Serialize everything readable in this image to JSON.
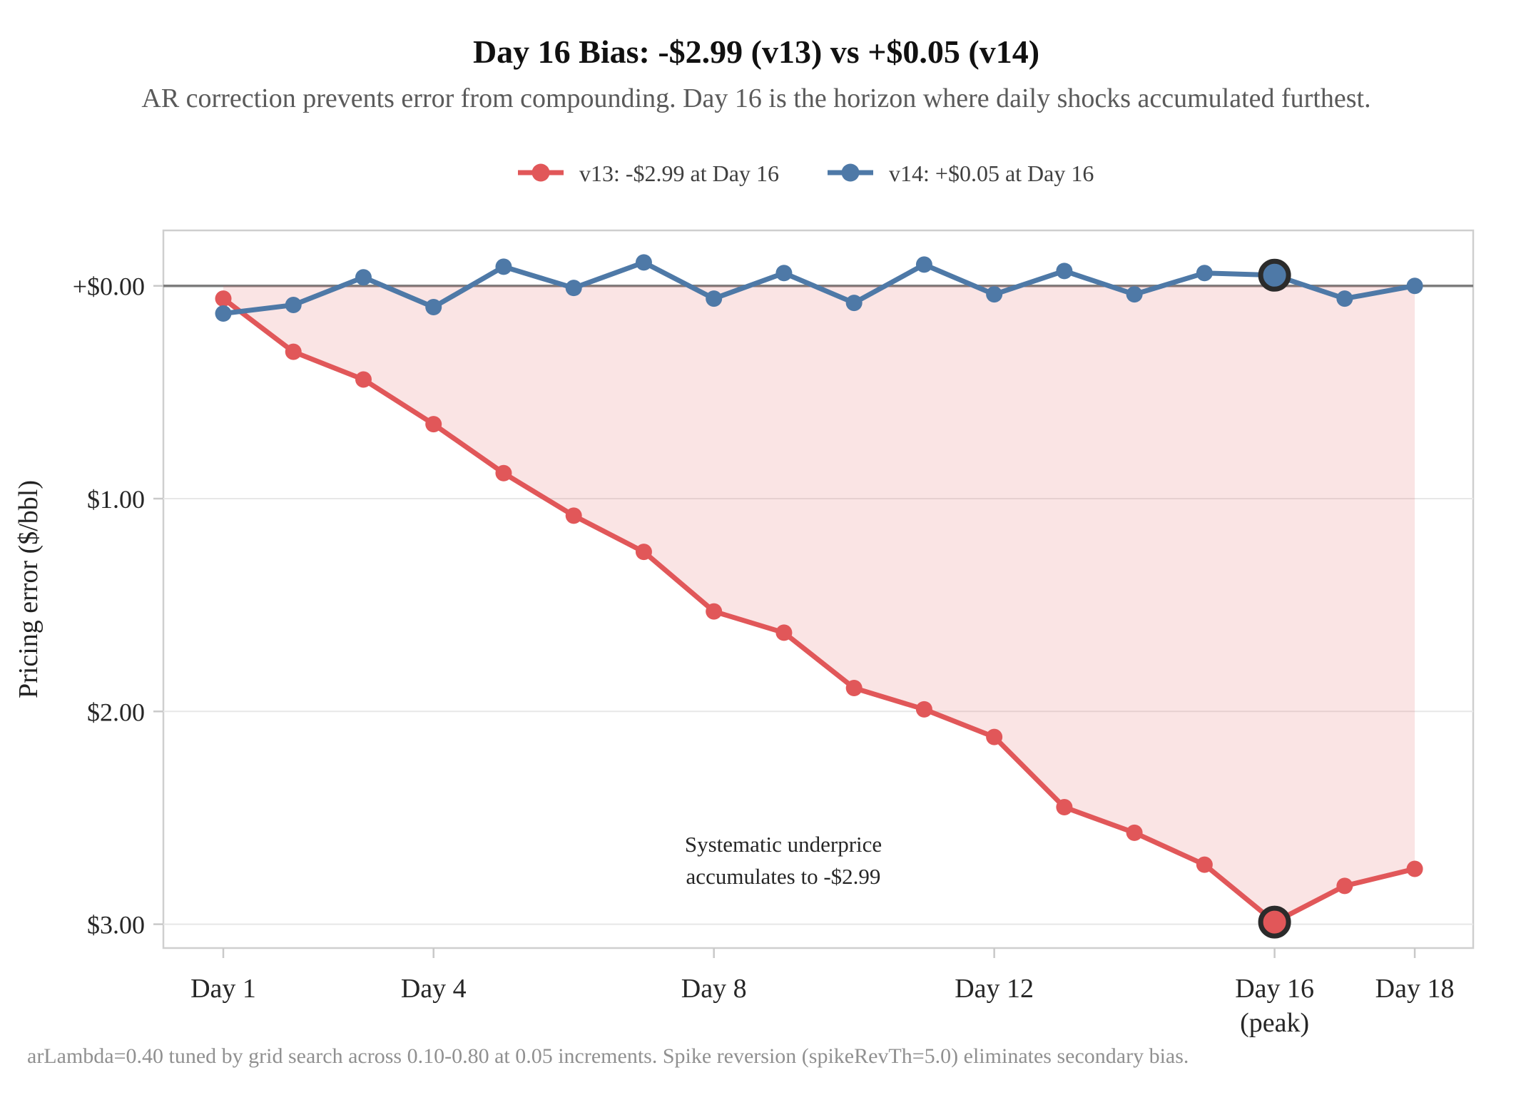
{
  "title": "Day 16 Bias: -$2.99 (v13) vs +$0.05 (v14)",
  "subtitle": "AR correction prevents error from compounding. Day 16 is the horizon where daily shocks accumulated furthest.",
  "footnote": "arLambda=0.40 tuned by grid search across 0.10-0.80 at 0.05 increments. Spike reversion (spikeRevTh=5.0) eliminates secondary bias.",
  "legend": {
    "items": [
      {
        "label": "v13: -$2.99 at Day 16",
        "color": "#e15759"
      },
      {
        "label": "v14: +$0.05 at Day 16",
        "color": "#4e79a7"
      }
    ]
  },
  "annotation": {
    "line1": "Systematic underprice",
    "line2": "accumulates to -$2.99",
    "color": "#d9534f"
  },
  "chart_data": {
    "type": "line",
    "title": "Day 16 Bias: -$2.99 (v13) vs +$0.05 (v14)",
    "ylabel": "Pricing error ($/bbl)",
    "xlabel": "",
    "x_days": [
      1,
      2,
      3,
      4,
      5,
      6,
      7,
      8,
      9,
      10,
      11,
      12,
      13,
      14,
      15,
      16,
      17,
      18
    ],
    "series": [
      {
        "name": "v13: -$2.99 at Day 16",
        "color": "#e15759",
        "values": [
          -0.06,
          -0.31,
          -0.44,
          -0.65,
          -0.88,
          -1.08,
          -1.25,
          -1.53,
          -1.63,
          -1.89,
          -1.99,
          -2.12,
          -2.45,
          -2.57,
          -2.72,
          -2.99,
          -2.82,
          -2.74
        ],
        "highlight_day": 16,
        "fill_to_zero": true
      },
      {
        "name": "v14: +$0.05 at Day 16",
        "color": "#4e79a7",
        "values": [
          -0.13,
          -0.09,
          0.04,
          -0.1,
          0.09,
          -0.01,
          0.11,
          -0.06,
          0.06,
          -0.08,
          0.1,
          -0.04,
          0.07,
          -0.04,
          0.06,
          0.05,
          -0.06,
          0.0
        ],
        "highlight_day": 16,
        "fill_to_zero": false
      }
    ],
    "ytick_values": [
      0,
      -1,
      -2,
      -3
    ],
    "ytick_labels": [
      "+$0.00",
      "$1.00",
      "$2.00",
      "$3.00"
    ],
    "xtick_days": [
      1,
      4,
      8,
      12,
      16,
      18
    ],
    "xtick_labels": [
      "Day 1",
      "Day 4",
      "Day 8",
      "Day 12",
      "Day 16",
      "Day 18"
    ],
    "peak_sublabel": "(peak)",
    "ylim": [
      0.26,
      -3.11
    ],
    "xlim": [
      0.15,
      18.84
    ],
    "grid": "horizontal",
    "legend_position": "top-center",
    "zero_line_color": "#7d7d7d",
    "fill_color": "rgba(225,87,89,0.16)",
    "highlight_ring_color": "#2b2b2b"
  }
}
